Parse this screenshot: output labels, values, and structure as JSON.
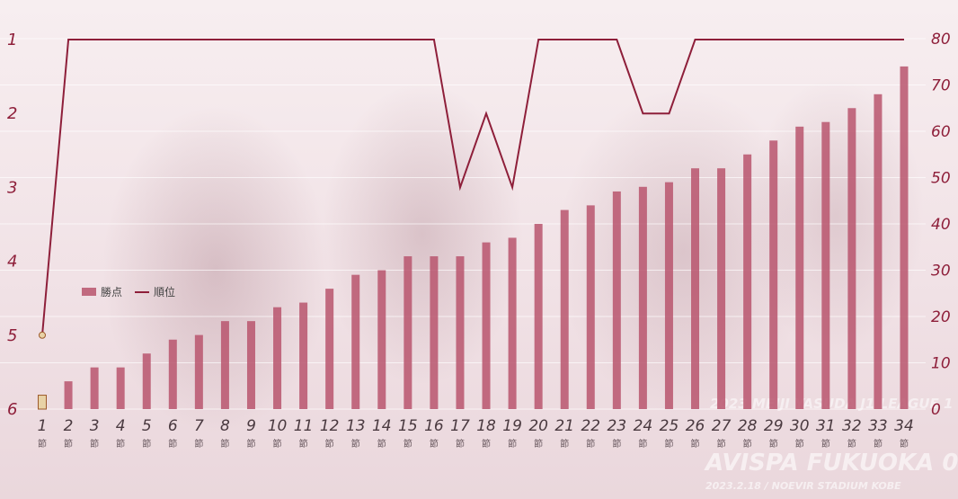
{
  "chart_data": {
    "type": "bar+line",
    "categories": [
      "1",
      "2",
      "3",
      "4",
      "5",
      "6",
      "7",
      "8",
      "9",
      "10",
      "11",
      "12",
      "13",
      "14",
      "15",
      "16",
      "17",
      "18",
      "19",
      "20",
      "21",
      "22",
      "23",
      "24",
      "25",
      "26",
      "27",
      "28",
      "29",
      "30",
      "31",
      "32",
      "33",
      "34"
    ],
    "category_suffix": "節",
    "series": [
      {
        "name": "勝点",
        "type": "bar",
        "axis": "right",
        "values": [
          3,
          6,
          9,
          9,
          12,
          15,
          16,
          19,
          19,
          22,
          23,
          26,
          29,
          30,
          33,
          33,
          33,
          36,
          37,
          40,
          43,
          44,
          47,
          48,
          49,
          52,
          52,
          55,
          58,
          61,
          62,
          65,
          68,
          74
        ]
      },
      {
        "name": "順位",
        "type": "line",
        "axis": "left",
        "values": [
          5,
          1,
          1,
          1,
          1,
          1,
          1,
          1,
          1,
          1,
          1,
          1,
          1,
          1,
          1,
          1,
          3,
          2,
          3,
          1,
          1,
          1,
          1,
          2,
          2,
          1,
          1,
          1,
          1,
          1,
          1,
          1,
          1,
          1
        ]
      }
    ],
    "left_axis": {
      "ticks": [
        "1",
        "2",
        "3",
        "4",
        "5",
        "6"
      ],
      "range": [
        1,
        6
      ],
      "inverted": true
    },
    "right_axis": {
      "ticks": [
        "0",
        "10",
        "20",
        "30",
        "40",
        "50",
        "60",
        "70",
        "80"
      ],
      "range": [
        0,
        80
      ]
    },
    "grid": true,
    "legend_position": "left-middle",
    "colors": {
      "bar": "#b8556d",
      "line": "#8e1f3a",
      "axis_text": "#8e1f3a",
      "first_bar": "#e8d2a6"
    }
  },
  "background_text": {
    "league": "2023 MEIJI YASUDA J1 LEAGUE 1",
    "match": "AVISPA FUKUOKA 0",
    "venue": "2023.2.18 / NOEVIR STADIUM KOBE"
  }
}
